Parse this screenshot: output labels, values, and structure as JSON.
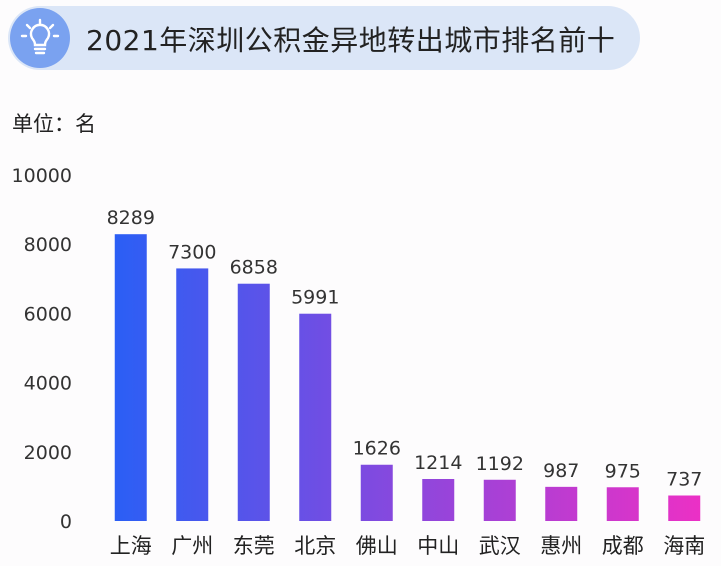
{
  "header": {
    "title": "2021年深圳公积金异地转出城市排名前十",
    "icon": "lightbulb-icon"
  },
  "unit_label": "单位：名",
  "colors": {
    "title_background": "#dbe6f7",
    "icon_background": "#7aa2f0",
    "bar_gradient_start": "#2660f6",
    "bar_gradient_end": "#f02fc4"
  },
  "chart_data": {
    "type": "bar",
    "title": "2021年深圳公积金异地转出城市排名前十",
    "ylabel": "单位：名",
    "xlabel": "",
    "categories": [
      "上海",
      "广州",
      "东莞",
      "北京",
      "佛山",
      "中山",
      "武汉",
      "惠州",
      "成都",
      "海南"
    ],
    "values": [
      8289,
      7300,
      6858,
      5991,
      1626,
      1214,
      1192,
      987,
      975,
      737
    ],
    "yticks": [
      0,
      2000,
      4000,
      6000,
      8000,
      10000
    ],
    "ylim": [
      0,
      10000
    ],
    "grid": false,
    "legend": "none",
    "data_labels": true
  }
}
